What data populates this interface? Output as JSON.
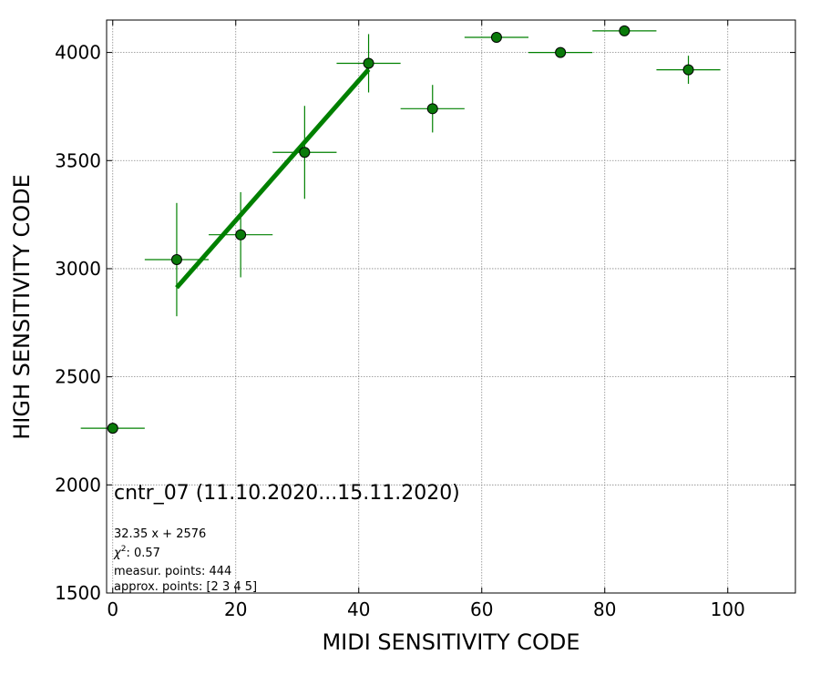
{
  "chart_data": {
    "type": "scatter",
    "xlabel": "MIDI SENSITIVITY CODE",
    "ylabel": "HIGH SENSITIVITY CODE",
    "xlim": [
      -1,
      111
    ],
    "ylim": [
      1500,
      4150
    ],
    "xticks": [
      0,
      20,
      40,
      60,
      80,
      100
    ],
    "yticks": [
      1500,
      2000,
      2500,
      3000,
      3500,
      4000
    ],
    "grid": true,
    "points": [
      {
        "x": 0,
        "y": 2262,
        "xerr": 5.2,
        "yerr": 0
      },
      {
        "x": 10.4,
        "y": 3042,
        "xerr": 5.2,
        "yerr": 262
      },
      {
        "x": 20.8,
        "y": 3157,
        "xerr": 5.2,
        "yerr": 197
      },
      {
        "x": 31.2,
        "y": 3538,
        "xerr": 5.2,
        "yerr": 215
      },
      {
        "x": 41.6,
        "y": 3950,
        "xerr": 5.2,
        "yerr": 135
      },
      {
        "x": 52.0,
        "y": 3740,
        "xerr": 5.2,
        "yerr": 110
      },
      {
        "x": 62.4,
        "y": 4070,
        "xerr": 5.2,
        "yerr": 0
      },
      {
        "x": 72.8,
        "y": 4000,
        "xerr": 5.2,
        "yerr": 0
      },
      {
        "x": 83.2,
        "y": 4100,
        "xerr": 5.2,
        "yerr": 0
      },
      {
        "x": 93.6,
        "y": 3920,
        "xerr": 5.2,
        "yerr": 65
      }
    ],
    "fit": {
      "slope": 32.35,
      "intercept": 2576,
      "x_start": 10.4,
      "x_end": 41.6
    },
    "colors": {
      "point_fill": "#0a7a0a",
      "error_bar": "#008000",
      "fit_line": "#008000",
      "grid": "#888888"
    }
  },
  "annotations": {
    "title": "cntr_07 (11.10.2020...15.11.2020)",
    "fit_formula": "32.35 x + 2576",
    "chi2_label": "χ",
    "chi2_exp": "2",
    "chi2_value": ": 0.57",
    "measur_points": "measur. points: 444",
    "approx_points": "approx. points: [2 3 4 5]"
  }
}
